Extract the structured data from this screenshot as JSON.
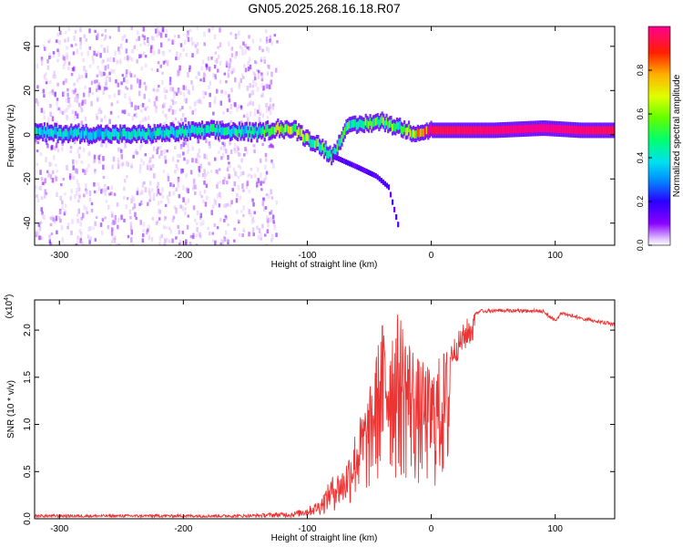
{
  "title": "GN05.2025.268.16.18.R07",
  "chart_data": [
    {
      "type": "heatmap",
      "name": "spectrogram",
      "xlabel": "Height of straight line (km)",
      "ylabel": "Frequency (Hz)",
      "xlim": [
        -320,
        148
      ],
      "ylim": [
        -50,
        49
      ],
      "xticks": [
        -300,
        -200,
        -100,
        0,
        100
      ],
      "yticks": [
        -40,
        -20,
        0,
        20,
        40
      ],
      "colorbar": {
        "label": "Normalized spectral amplitude",
        "range": [
          0,
          1
        ],
        "ticks": [
          0.0,
          0.2,
          0.4,
          0.6,
          0.8
        ],
        "colors": [
          "#ffffff",
          "#8a00ff",
          "#2a00ff",
          "#0090ff",
          "#00e0f0",
          "#00ff70",
          "#60ff00",
          "#e0ff00",
          "#ffb000",
          "#ff2000",
          "#ff0090"
        ]
      },
      "ridge": [
        {
          "x": -320,
          "freq": 1,
          "amp": 0.45
        },
        {
          "x": -240,
          "freq": 0,
          "amp": 0.45
        },
        {
          "x": -180,
          "freq": 2,
          "amp": 0.5
        },
        {
          "x": -140,
          "freq": 1,
          "amp": 0.5
        },
        {
          "x": -125,
          "freq": 3,
          "amp": 0.75
        },
        {
          "x": -110,
          "freq": 2,
          "amp": 0.7
        },
        {
          "x": -100,
          "freq": -2,
          "amp": 0.65
        },
        {
          "x": -90,
          "freq": -5,
          "amp": 0.6
        },
        {
          "x": -80,
          "freq": -10,
          "amp": 0.55
        },
        {
          "x": -70,
          "freq": 3,
          "amp": 0.55
        },
        {
          "x": -55,
          "freq": 5,
          "amp": 0.6
        },
        {
          "x": -40,
          "freq": 6,
          "amp": 0.65
        },
        {
          "x": -25,
          "freq": 3,
          "amp": 0.6
        },
        {
          "x": -15,
          "freq": 1,
          "amp": 0.75
        },
        {
          "x": 0,
          "freq": 2,
          "amp": 0.95
        },
        {
          "x": 50,
          "freq": 2,
          "amp": 0.98
        },
        {
          "x": 90,
          "freq": 3,
          "amp": 1.0
        },
        {
          "x": 120,
          "freq": 2,
          "amp": 0.98
        },
        {
          "x": 148,
          "freq": 2,
          "amp": 0.96
        }
      ],
      "branch": [
        {
          "x": -80,
          "freq": -10
        },
        {
          "x": -60,
          "freq": -15
        },
        {
          "x": -45,
          "freq": -19
        },
        {
          "x": -35,
          "freq": -24
        },
        {
          "x": -27,
          "freq": -42
        }
      ]
    },
    {
      "type": "line",
      "name": "snr",
      "xlabel": "Height of straight line (km)",
      "ylabel": "SNR (10 * v/v)",
      "multiplier": "(x10",
      "multiplier_exp": "4",
      "xlim": [
        -320,
        148
      ],
      "ylim": [
        0,
        2.32
      ],
      "xticks": [
        -300,
        -200,
        -100,
        0,
        100
      ],
      "yticks": [
        0.0,
        0.5,
        1.0,
        1.5,
        2.0
      ],
      "color": "#ee3333",
      "envelope": [
        {
          "x": -320,
          "y": 0.03
        },
        {
          "x": -250,
          "y": 0.03
        },
        {
          "x": -200,
          "y": 0.03
        },
        {
          "x": -150,
          "y": 0.03
        },
        {
          "x": -115,
          "y": 0.06
        },
        {
          "x": -100,
          "y": 0.12
        },
        {
          "x": -90,
          "y": 0.2
        },
        {
          "x": -80,
          "y": 0.45
        },
        {
          "x": -70,
          "y": 0.55
        },
        {
          "x": -60,
          "y": 1.0
        },
        {
          "x": -50,
          "y": 1.35
        },
        {
          "x": -40,
          "y": 2.1
        },
        {
          "x": -25,
          "y": 2.2
        },
        {
          "x": -10,
          "y": 1.7
        },
        {
          "x": 0,
          "y": 1.6
        },
        {
          "x": 10,
          "y": 1.8
        },
        {
          "x": 20,
          "y": 1.95
        },
        {
          "x": 30,
          "y": 2.15
        },
        {
          "x": 40,
          "y": 2.22
        },
        {
          "x": 60,
          "y": 2.23
        },
        {
          "x": 90,
          "y": 2.22
        },
        {
          "x": 100,
          "y": 2.12
        },
        {
          "x": 105,
          "y": 2.2
        },
        {
          "x": 120,
          "y": 2.15
        },
        {
          "x": 148,
          "y": 2.08
        }
      ]
    }
  ]
}
